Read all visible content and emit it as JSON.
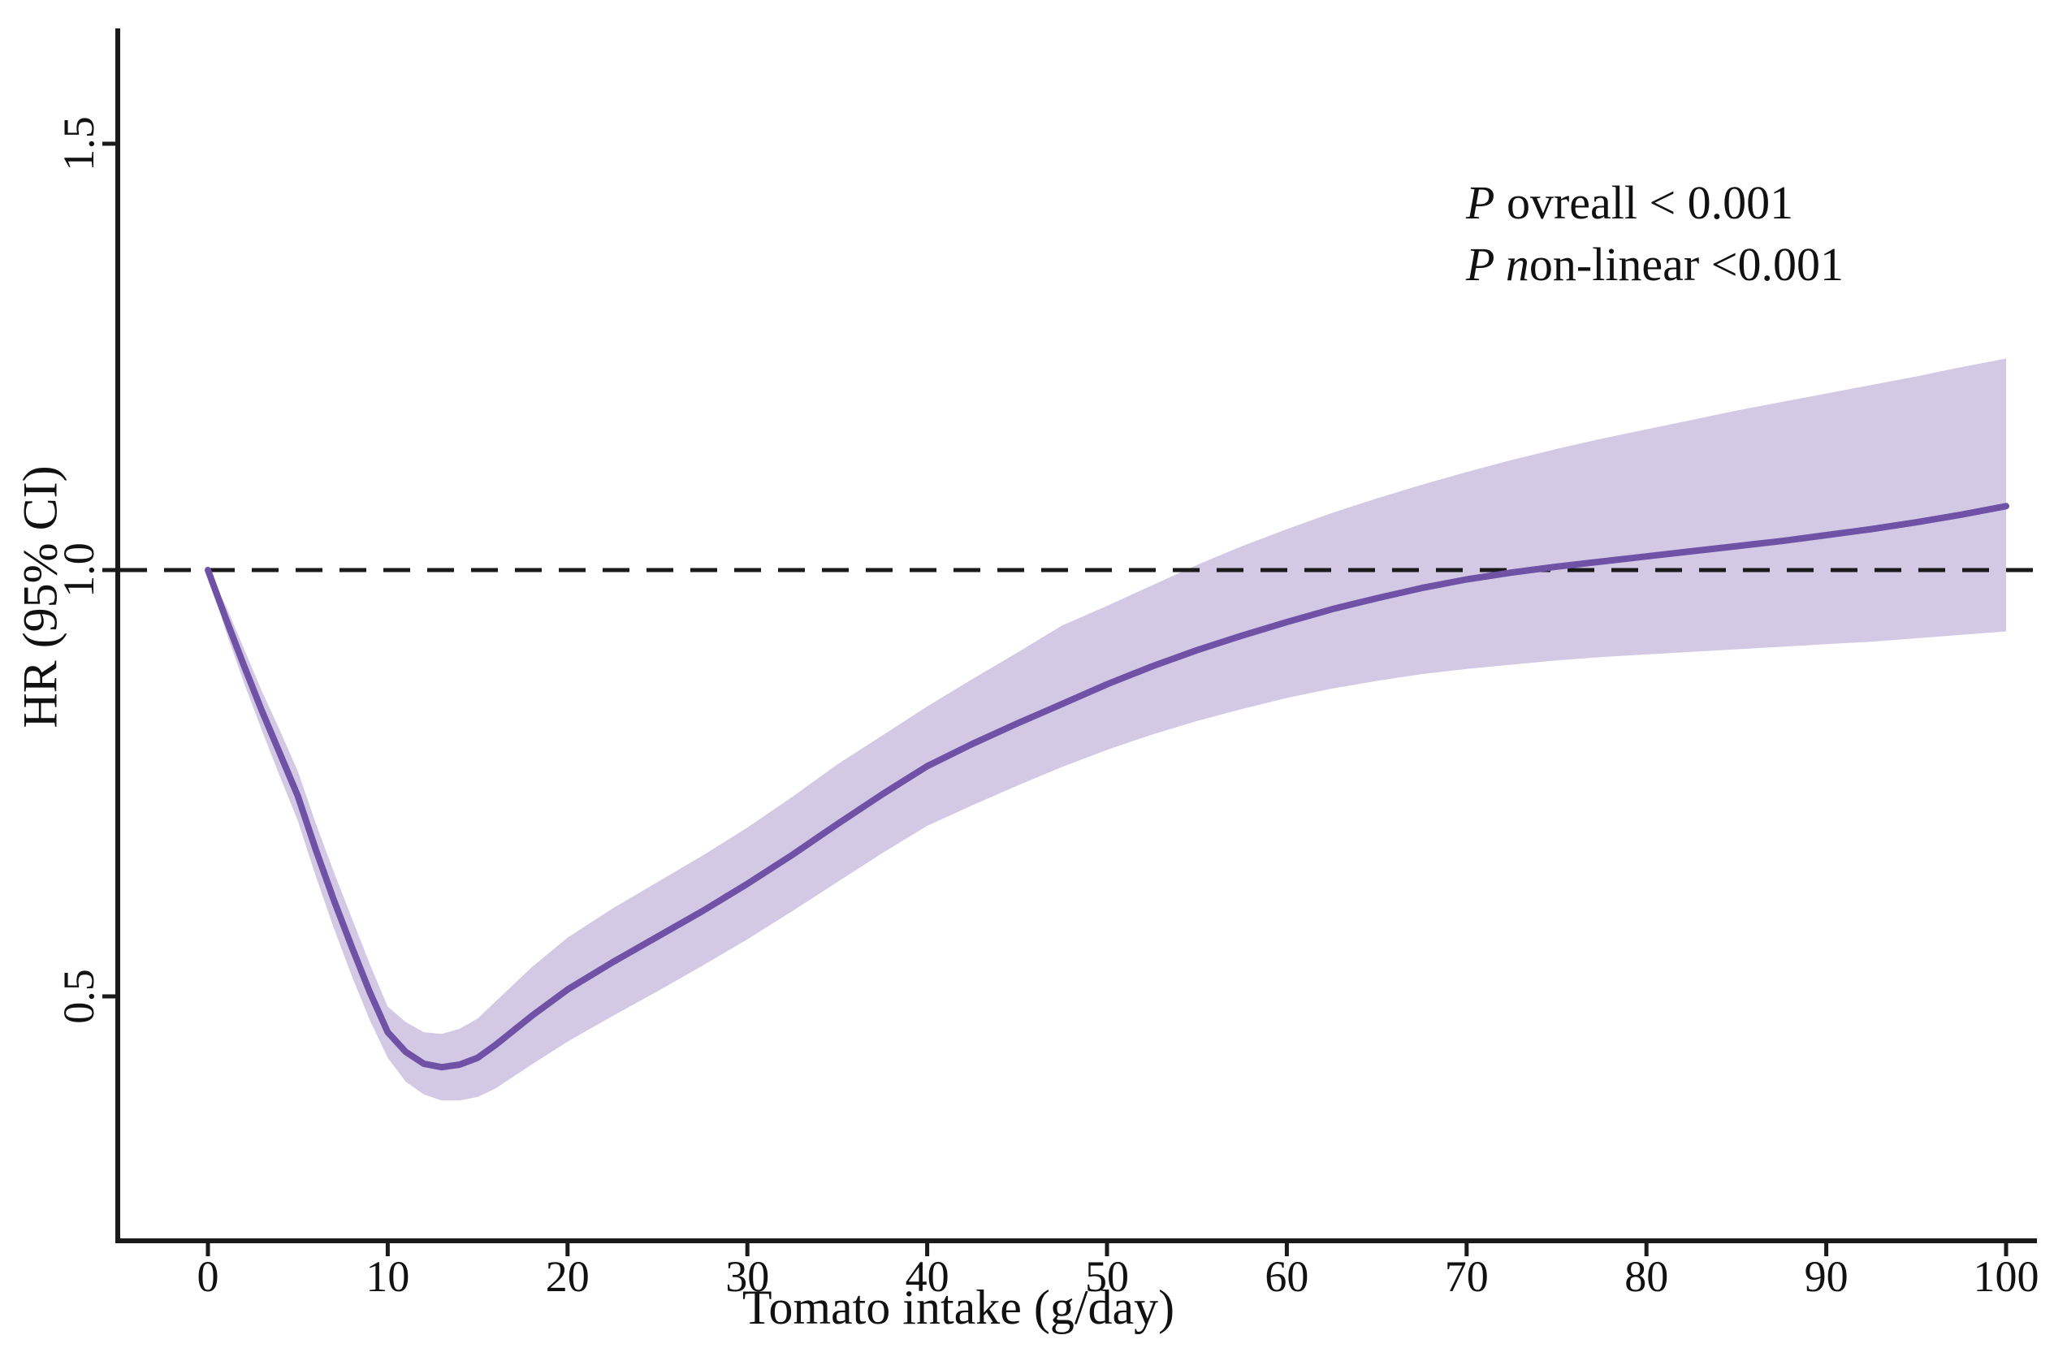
{
  "figure": {
    "background": "#ffffff",
    "annotations": {
      "p_overall": {
        "segments": [
          {
            "text": "P",
            "italic": true
          },
          {
            "text": " ovreall < 0.001",
            "italic": false
          }
        ]
      },
      "p_nonlinear": {
        "segments": [
          {
            "text": "P n",
            "italic": true
          },
          {
            "text": "on-linear <0.001",
            "italic": false
          }
        ]
      }
    }
  },
  "chart_data": {
    "type": "line",
    "title": "",
    "xlabel": "Tomato intake (g/day)",
    "ylabel": "HR (95% CI)",
    "xlim": [
      -5,
      101.7
    ],
    "ylim": [
      0.213,
      1.635
    ],
    "grid": false,
    "legend": "none",
    "x_ticks": [
      0,
      10,
      20,
      30,
      40,
      50,
      60,
      70,
      80,
      90,
      100
    ],
    "x_tick_labels": [
      "0",
      "10",
      "20",
      "30",
      "40",
      "50",
      "60",
      "70",
      "80",
      "90",
      "100"
    ],
    "y_ticks": [
      0.5,
      1.0,
      1.5
    ],
    "y_tick_labels": [
      "0.5",
      "1.0",
      "1.5"
    ],
    "reference_line": {
      "y": 1.0,
      "style": "dashed",
      "color": "#1a1a1a"
    },
    "colors": {
      "curve": "#6f51a6",
      "ci_band": "#d3c9e5",
      "axis": "#1a1a1a",
      "text": "#111111"
    },
    "x": [
      0,
      1,
      2,
      3,
      4,
      5,
      6,
      7,
      8,
      9,
      10,
      11,
      12,
      13,
      14,
      15,
      16,
      18,
      20,
      22.5,
      25,
      27.5,
      30,
      32.5,
      35,
      37.5,
      40,
      42.5,
      45,
      47.5,
      50,
      52.5,
      55,
      57.5,
      60,
      62.5,
      65,
      67.5,
      70,
      72.5,
      75,
      77.5,
      80,
      82.5,
      85,
      87.5,
      90,
      92.5,
      95,
      97.5,
      100
    ],
    "series": [
      {
        "name": "HR",
        "values": [
          1.0,
          0.943,
          0.888,
          0.835,
          0.785,
          0.735,
          0.672,
          0.613,
          0.558,
          0.505,
          0.458,
          0.435,
          0.421,
          0.417,
          0.42,
          0.428,
          0.443,
          0.477,
          0.508,
          0.54,
          0.57,
          0.6,
          0.632,
          0.666,
          0.702,
          0.737,
          0.77,
          0.796,
          0.82,
          0.843,
          0.866,
          0.887,
          0.906,
          0.923,
          0.939,
          0.954,
          0.967,
          0.979,
          0.989,
          0.997,
          1.004,
          1.01,
          1.016,
          1.022,
          1.028,
          1.034,
          1.041,
          1.048,
          1.056,
          1.065,
          1.075
        ]
      },
      {
        "name": "CI lower",
        "values": [
          1.0,
          0.928,
          0.868,
          0.812,
          0.758,
          0.706,
          0.641,
          0.58,
          0.524,
          0.472,
          0.428,
          0.4,
          0.385,
          0.378,
          0.378,
          0.382,
          0.392,
          0.42,
          0.447,
          0.477,
          0.506,
          0.536,
          0.567,
          0.6,
          0.634,
          0.668,
          0.7,
          0.724,
          0.747,
          0.769,
          0.789,
          0.807,
          0.823,
          0.837,
          0.85,
          0.861,
          0.87,
          0.878,
          0.884,
          0.889,
          0.894,
          0.898,
          0.901,
          0.904,
          0.907,
          0.91,
          0.913,
          0.916,
          0.92,
          0.924,
          0.928
        ]
      },
      {
        "name": "CI upper",
        "values": [
          1.0,
          0.958,
          0.908,
          0.858,
          0.812,
          0.764,
          0.703,
          0.646,
          0.592,
          0.538,
          0.488,
          0.47,
          0.458,
          0.456,
          0.462,
          0.474,
          0.494,
          0.534,
          0.569,
          0.603,
          0.634,
          0.665,
          0.698,
          0.734,
          0.772,
          0.806,
          0.84,
          0.872,
          0.903,
          0.935,
          0.958,
          0.982,
          1.006,
          1.028,
          1.048,
          1.067,
          1.084,
          1.1,
          1.115,
          1.129,
          1.142,
          1.154,
          1.165,
          1.176,
          1.187,
          1.197,
          1.207,
          1.217,
          1.227,
          1.238,
          1.248
        ]
      }
    ],
    "notable_points": {
      "start": {
        "x": 0,
        "hr": 1.0
      },
      "minimum": {
        "x": 13,
        "hr": 0.42
      },
      "hr_crosses_1_at_x": 74,
      "upper_ci_crosses_1_at_x": 54,
      "end": {
        "x": 100,
        "hr": 1.075,
        "ci": [
          0.93,
          1.25
        ]
      }
    }
  }
}
